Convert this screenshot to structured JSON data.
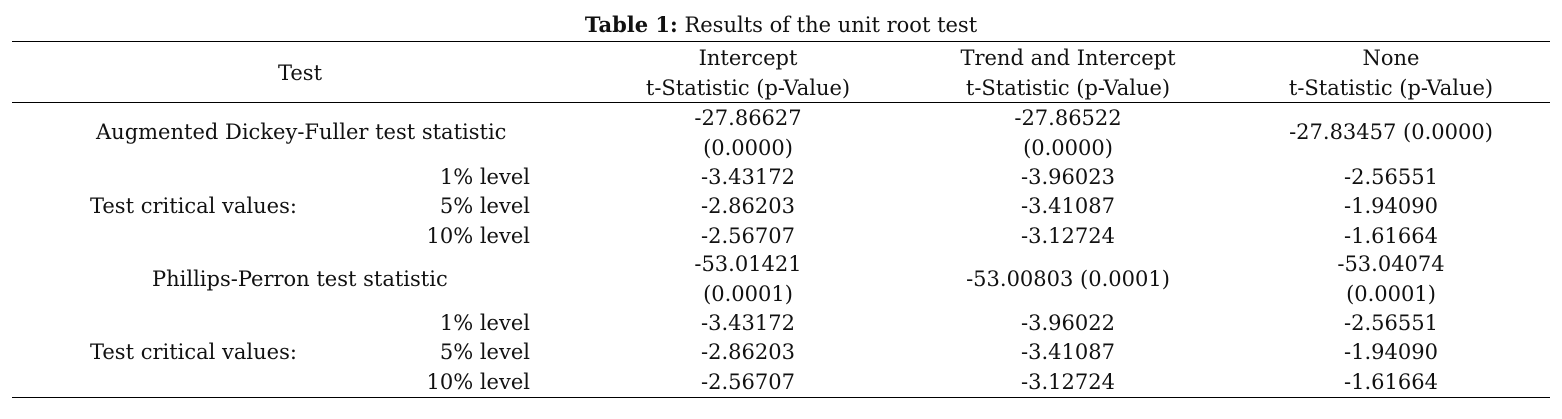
{
  "caption": {
    "label": "Table 1:",
    "text": " Results of the unit root test"
  },
  "header": {
    "test": "Test",
    "intercept": [
      "Intercept",
      "t-Statistic (p-Value)"
    ],
    "trend": [
      "Trend and Intercept",
      "t-Statistic (p-Value)"
    ],
    "none": [
      "None",
      "t-Statistic (p-Value)"
    ]
  },
  "adf": {
    "label": "Augmented Dickey-Fuller test statistic",
    "intercept": [
      "-27.86627",
      "(0.0000)"
    ],
    "trend": [
      "-27.86522",
      "(0.0000)"
    ],
    "none": "-27.83457 (0.0000)",
    "critical_label": "Test critical values:",
    "levels": [
      {
        "level": "1% level",
        "intercept": "-3.43172",
        "trend": "-3.96023",
        "none": "-2.56551"
      },
      {
        "level": "5% level",
        "intercept": "-2.86203",
        "trend": "-3.41087",
        "none": "-1.94090"
      },
      {
        "level": "10% level",
        "intercept": "-2.56707",
        "trend": "-3.12724",
        "none": "-1.61664"
      }
    ]
  },
  "pp": {
    "label": "Phillips-Perron test statistic",
    "intercept": [
      "-53.01421",
      "(0.0001)"
    ],
    "trend": "-53.00803 (0.0001)",
    "none": [
      "-53.04074",
      "(0.0001)"
    ],
    "critical_label": "Test critical values:",
    "levels": [
      {
        "level": "1% level",
        "intercept": "-3.43172",
        "trend": "-3.96022",
        "none": "-2.56551"
      },
      {
        "level": "5% level",
        "intercept": "-2.86203",
        "trend": "-3.41087",
        "none": "-1.94090"
      },
      {
        "level": "10% level",
        "intercept": "-2.56707",
        "trend": "-3.12724",
        "none": "-1.61664"
      }
    ]
  }
}
